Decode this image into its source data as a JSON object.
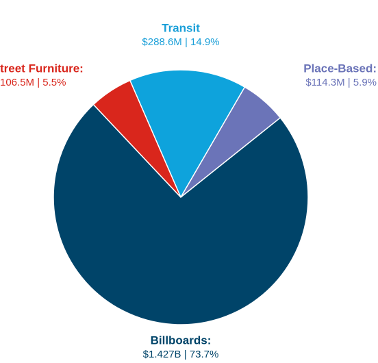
{
  "chart_data": {
    "type": "pie",
    "categories": [
      "Transit",
      "Place-Based:",
      "Billboards:",
      "treet Furniture:"
    ],
    "values": [
      14.9,
      5.9,
      73.7,
      5.5
    ],
    "value_labels": [
      "$288.6M  |  14.9%",
      "$114.3M  |  5.9%",
      "$1.427B  |  73.7%",
      "106.5M  |  5.5%"
    ],
    "colors": [
      "#0ea3dc",
      "#6b74b8",
      "#004469",
      "#d9261c"
    ]
  }
}
